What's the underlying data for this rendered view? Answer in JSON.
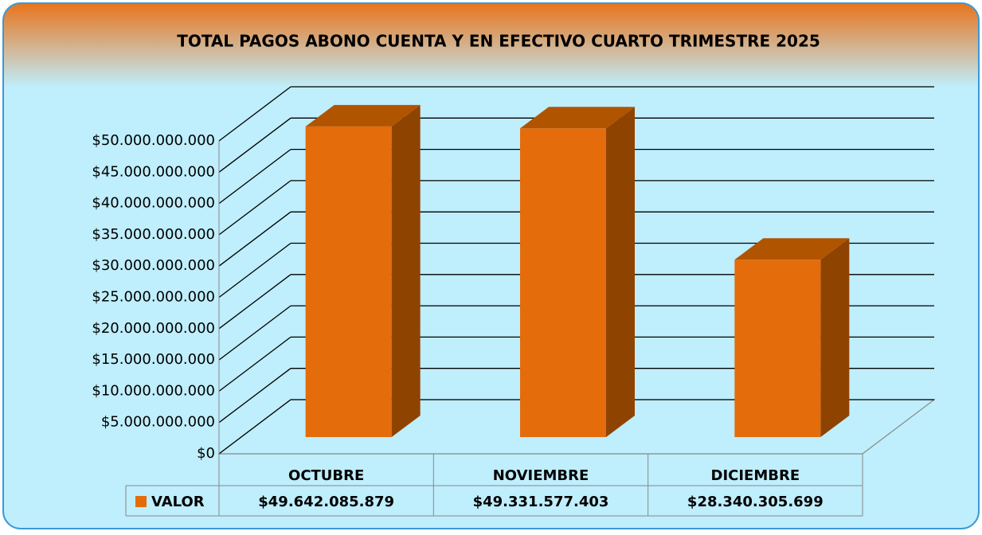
{
  "chart_data": {
    "type": "bar",
    "title": "TOTAL PAGOS ABONO CUENTA Y EN EFECTIVO CUARTO TRIMESTRE 2025",
    "categories": [
      "OCTUBRE",
      "NOVIEMBRE",
      "DICIEMBRE"
    ],
    "series": [
      {
        "name": "VALOR",
        "color": "#e46c0a",
        "values": [
          49642085879,
          49331577403,
          28340305699
        ],
        "value_labels": [
          "$49.642.085.879",
          "$49.331.577.403",
          "$28.340.305.699"
        ]
      }
    ],
    "ylim": [
      0,
      50000000000
    ],
    "yticks": [
      {
        "value": 0,
        "label": "$0"
      },
      {
        "value": 5000000000,
        "label": "$5.000.000.000"
      },
      {
        "value": 10000000000,
        "label": "$10.000.000.000"
      },
      {
        "value": 15000000000,
        "label": "$15.000.000.000"
      },
      {
        "value": 20000000000,
        "label": "$20.000.000.000"
      },
      {
        "value": 25000000000,
        "label": "$25.000.000.000"
      },
      {
        "value": 30000000000,
        "label": "$30.000.000.000"
      },
      {
        "value": 35000000000,
        "label": "$35.000.000.000"
      },
      {
        "value": 40000000000,
        "label": "$40.000.000.000"
      },
      {
        "value": 45000000000,
        "label": "$45.000.000.000"
      },
      {
        "value": 50000000000,
        "label": "$50.000.000.000"
      }
    ],
    "grid": true
  }
}
